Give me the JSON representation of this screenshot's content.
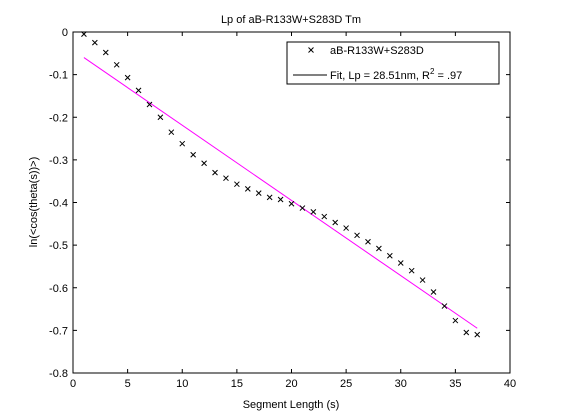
{
  "chart_data": {
    "type": "scatter",
    "title": "Lp of aB-R133W+S283D Tm",
    "xlabel": "Segment Length (s)",
    "ylabel": "ln(<cos(theta(s))>)",
    "xlim": [
      0,
      40
    ],
    "ylim": [
      -0.8,
      0
    ],
    "xticks": [
      0,
      5,
      10,
      15,
      20,
      25,
      30,
      35,
      40
    ],
    "yticks": [
      0,
      -0.1,
      -0.2,
      -0.3,
      -0.4,
      -0.5,
      -0.6,
      -0.7,
      -0.8
    ],
    "xtick_labels": [
      "0",
      "5",
      "10",
      "15",
      "20",
      "25",
      "30",
      "35",
      "40"
    ],
    "ytick_labels": [
      "0",
      "-0.1",
      "-0.2",
      "-0.3",
      "-0.4",
      "-0.5",
      "-0.6",
      "-0.7",
      "-0.8"
    ],
    "grid": false,
    "legend_position": "top-right",
    "series": [
      {
        "name": "aB-R133W+S283D",
        "kind": "markers",
        "marker": "x",
        "color": "#000000",
        "x": [
          1,
          2,
          3,
          4,
          5,
          6,
          7,
          8,
          9,
          10,
          11,
          12,
          13,
          14,
          15,
          16,
          17,
          18,
          19,
          20,
          21,
          22,
          23,
          24,
          25,
          26,
          27,
          28,
          29,
          30,
          31,
          32,
          33,
          34,
          35,
          36,
          37
        ],
        "y": [
          -0.005,
          -0.025,
          -0.048,
          -0.077,
          -0.107,
          -0.137,
          -0.17,
          -0.2,
          -0.235,
          -0.262,
          -0.288,
          -0.308,
          -0.33,
          -0.343,
          -0.357,
          -0.368,
          -0.378,
          -0.388,
          -0.393,
          -0.403,
          -0.413,
          -0.422,
          -0.433,
          -0.447,
          -0.46,
          -0.477,
          -0.492,
          -0.508,
          -0.525,
          -0.542,
          -0.56,
          -0.582,
          -0.61,
          -0.643,
          -0.677,
          -0.705,
          -0.71
        ]
      },
      {
        "name": "Fit, Lp = 28.51nm, R",
        "name_superscript": "2",
        "name_suffix": " = .97",
        "kind": "line",
        "color": "#ff00ff",
        "x": [
          1,
          37
        ],
        "y": [
          -0.06,
          -0.695
        ]
      }
    ]
  }
}
